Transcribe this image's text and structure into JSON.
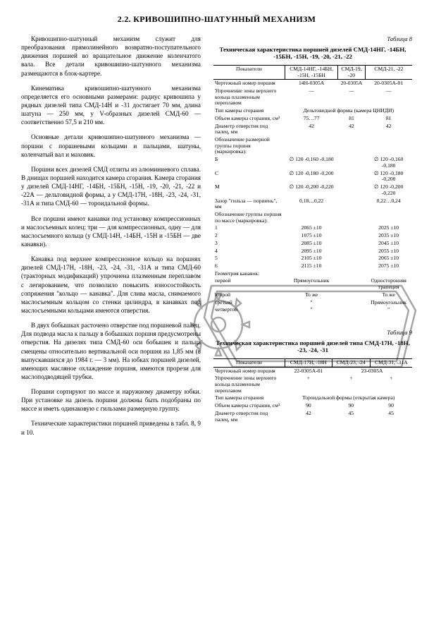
{
  "section_title": "2.2. КРИВОШИПНО-ШАТУННЫЙ МЕХАНИЗМ",
  "paragraphs": {
    "p1": "Кривошипно-шатунный механизм служит для преобразования прямолинейного возвратно-поступательного движения поршней во вращательное движение коленчатого вала. Все детали кривошипно-шатунного механизма размещаются в блок-картере.",
    "p2": "Кинематика кривошипно-шатунного механизма определяется его основными размерами: радиус кривошипа у рядных дизелей типа СМД-14Н и -31 достигает 70 мм, длина шатуна — 250 мм, у V-образных дизелей СМД-60 — соответственно 57,5 и 210 мм.",
    "p3": "Основные детали кривошипно-шатунного механизма — поршни с поршневыми кольцами и пальцами, шатуны, коленчатый вал и маховик.",
    "p4": "Поршни всех дизелей СМД отлиты из алюминиевого сплава. В днищах поршней находится камера сгорания. Камера сгорания у дизелей СМД-14НГ, -14БН, -15БН, -15Н, -19, -20, -21, -22 и -22А — дельтовидной формы, а у СМД-17Н, -18Н, -23, -24, -31, -31А и типа СМД-60 — тороидальной формы.",
    "p5": "Все поршни имеют канавки под установку компрессионных и маслосъемных колец: три — для компрессионных, одну — для маслосъемного кольца (у СМД-14Н, -14БН, -15Н и -15БН — две канавки).",
    "p6": "Канавка под верхнее компрессионное кольцо на поршнях дизелей СМД-17Н, -18Н, -23, -24, -31, -31А и типа СМД-60 (тракторных модификаций) упрочнена плазменным переплавом с легированием, что позволило повысить износостойкость сопряжения \"кольцо — канавка\". Для слива масла, снимаемого маслосъемным кольцом со стенки цилиндра, в канавках под маслосъемными кольцами имеются отверстия.",
    "p7": "В двух бобышках расточено отверстие под поршневой палец. Для подвода масла к пальцу в бобышках поршня предусмотрены отверстия. На дизелях типа СМД-60 оси бобышек и пальца смещены относительно вертикальной оси поршня на 1,85 мм (в выпускавшихся до 1984 г. — 3 мм). На юбках поршней дизелей, имеющих масляное охлаждение поршня, имеются прорези для маслоподводящей трубки.",
    "p8": "Поршни сортируют по массе и наружному диаметру юбки. При установке на дизель поршни должны быть подобраны по массе и иметь одинаковую с гильзами размерную группу.",
    "p9": "Технические характеристики поршней приведены в табл. 8, 9 и 10."
  },
  "table8": {
    "caption": "Таблица 8",
    "title": "Техническая характеристика поршней дизелей\nСМД-14НГ, -14БН, -15БН, -15Н, -19, -20, -21, -22",
    "header_ind": "Показатели",
    "cols": [
      "СМД-14НГ, -14БН, -15Н, -15БН",
      "СМД-19, -20",
      "СМД-21, -22"
    ],
    "rows": [
      {
        "ind": "Чертежный номер поршня",
        "v": [
          "14Н-0305А",
          "20-0305А",
          "20-0305А-01"
        ]
      },
      {
        "ind": "Упрочнение зоны верхнего кольца плазменным переплавом",
        "v": [
          "—",
          "—",
          "—"
        ]
      },
      {
        "ind": "Тип камеры сгорания",
        "v": [
          "Дельтовидной формы (камера ЦНИДИ)",
          "",
          ""
        ],
        "span": 3
      },
      {
        "ind": "Объем камеры сгорания, см³",
        "v": [
          "75…77",
          "81",
          "81"
        ]
      },
      {
        "ind": "Диаметр отверстия под палец, мм",
        "v": [
          "42",
          "42",
          "42"
        ]
      },
      {
        "ind": "Обозначение размерной группы поршня (маркировка):",
        "v": [
          "",
          "",
          ""
        ]
      },
      {
        "ind": "    Б",
        "v": [
          "∅ 120 -0,160 -0,180",
          "",
          "∅ 120 -0,160 -0,180"
        ]
      },
      {
        "ind": "    С",
        "v": [
          "∅ 120 -0,180 -0,200",
          "",
          "∅ 120 -0,180 -0,200"
        ]
      },
      {
        "ind": "    М",
        "v": [
          "∅ 120 -0,200 -0,220",
          "",
          "∅ 120 -0,200 -0,220"
        ]
      },
      {
        "ind": "Зазор \"гильза — поршень\", мм",
        "v": [
          "0,18…0,22",
          "",
          "0,22…0,24"
        ]
      },
      {
        "ind": "Обозначение группы поршня по массе (маркировка):",
        "v": [
          "",
          "",
          ""
        ]
      },
      {
        "ind": "    1",
        "v": [
          "2065 ±10",
          "",
          "2025 ±10"
        ]
      },
      {
        "ind": "    2",
        "v": [
          "1075 ±10",
          "",
          "2035 ±10"
        ]
      },
      {
        "ind": "    3",
        "v": [
          "2085 ±10",
          "",
          "2045 ±10"
        ]
      },
      {
        "ind": "    4",
        "v": [
          "2095 ±10",
          "",
          "2055 ±10"
        ]
      },
      {
        "ind": "    5",
        "v": [
          "2105 ±10",
          "",
          "2065 ±10"
        ]
      },
      {
        "ind": "    6",
        "v": [
          "2115 ±10",
          "",
          "2075 ±10"
        ]
      },
      {
        "ind": "Геометрия канавок:",
        "v": [
          "",
          "",
          ""
        ]
      },
      {
        "ind": "    первой",
        "v": [
          "Прямоугольник",
          "",
          "Односторонняя трапеция"
        ]
      },
      {
        "ind": "    второй",
        "v": [
          "То же",
          "",
          "То же"
        ]
      },
      {
        "ind": "    третьей",
        "v": [
          "\"",
          "",
          "Прямоугольник"
        ]
      },
      {
        "ind": "    четвертой",
        "v": [
          "\"",
          "",
          "\""
        ]
      }
    ]
  },
  "table9": {
    "caption": "Таблица 9",
    "title": "Техническая характеристика поршней дизелей типа\nСМД-17Н, -18Н, -23, -24, -31",
    "header_ind": "Показатели",
    "cols": [
      "СМД-17Н, -18Н",
      "СМД-23, -24",
      "СМД-31, -31А"
    ],
    "rows": [
      {
        "ind": "Чертежный номер поршня",
        "v": [
          "22-0305А-01",
          "23-0305А",
          ""
        ],
        "span12": true
      },
      {
        "ind": "Упрочнение зоны верхнего кольца плазменным переплавом",
        "v": [
          "+",
          "+",
          "+"
        ]
      },
      {
        "ind": "Тип камеры сгорания",
        "v": [
          "Тороидальной формы (открытая камера)",
          "",
          ""
        ],
        "span": 3
      },
      {
        "ind": "Объем камеры сгорания, см³",
        "v": [
          "90",
          "90",
          "90"
        ]
      },
      {
        "ind": "Диаметр отверстия под палец, мм",
        "v": [
          "42",
          "45",
          "45"
        ]
      }
    ]
  }
}
